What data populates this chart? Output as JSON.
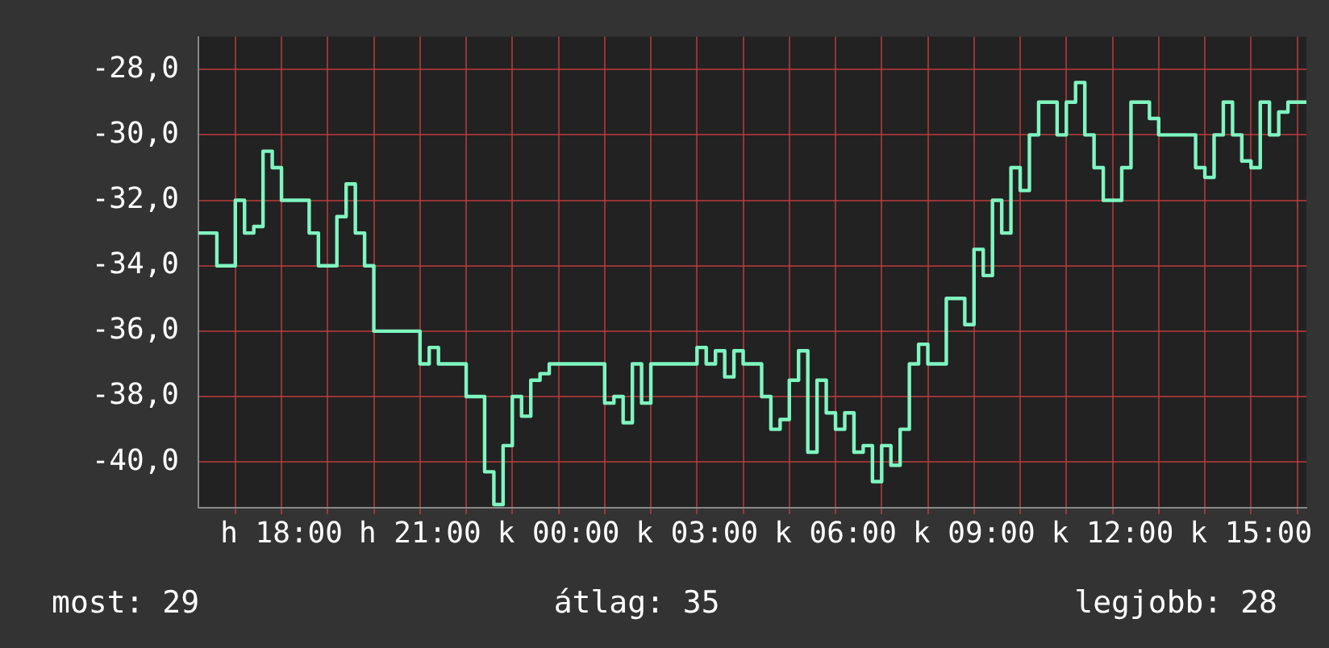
{
  "chart_data": {
    "type": "step",
    "grid": true,
    "legend": false,
    "marker": "none",
    "line_style": "solid",
    "categories": [
      null,
      null,
      null,
      null,
      null,
      null,
      null,
      null,
      null,
      "h 18:00",
      null,
      null,
      null,
      null,
      null,
      null,
      null,
      null,
      null,
      null,
      null,
      null,
      null,
      null,
      "h 21:00",
      null,
      null,
      null,
      null,
      null,
      null,
      null,
      null,
      null,
      null,
      null,
      null,
      null,
      null,
      "k 00:00",
      null,
      null,
      null,
      null,
      null,
      null,
      null,
      null,
      null,
      null,
      null,
      null,
      null,
      null,
      "k 03:00",
      null,
      null,
      null,
      null,
      null,
      null,
      null,
      null,
      null,
      null,
      null,
      null,
      null,
      null,
      "k 06:00",
      null,
      null,
      null,
      null,
      null,
      null,
      null,
      null,
      null,
      null,
      null,
      null,
      null,
      null,
      "k 09:00",
      null,
      null,
      null,
      null,
      null,
      null,
      null,
      null,
      null,
      null,
      null,
      null,
      null,
      null,
      "k 12:00",
      null,
      null,
      null,
      null,
      null,
      null,
      null,
      null,
      null,
      null,
      null,
      null,
      null,
      null,
      "k 15:00",
      null,
      null,
      null,
      null,
      null,
      null
    ],
    "ylim": [
      -41.4,
      -27.0
    ],
    "yticks": [
      {
        "value": -40,
        "label": "-40,0"
      },
      {
        "value": -38,
        "label": "-38,0"
      },
      {
        "value": -36,
        "label": "-36,0"
      },
      {
        "value": -34,
        "label": "-34,0"
      },
      {
        "value": -32,
        "label": "-32,0"
      },
      {
        "value": -30,
        "label": "-30,0"
      },
      {
        "value": -28,
        "label": "-28,0"
      }
    ],
    "annotations": [
      "most: 29",
      "átlag: 35",
      "legjobb: 28"
    ],
    "series": [
      {
        "color": "#7ff5c0",
        "values": [
          -33,
          -33,
          -33,
          -34,
          -34,
          -32,
          -33,
          -32.8,
          -30.5,
          -31,
          -32,
          -32,
          -32,
          -33,
          -34,
          -34,
          -32.5,
          -31.5,
          -33,
          -34,
          -36,
          -36,
          -36,
          -36,
          -36,
          -37,
          -36.5,
          -37,
          -37,
          -37,
          -38,
          -38,
          -40.3,
          -41.3,
          -39.5,
          -38,
          -38.6,
          -37.5,
          -37.3,
          -37,
          -37,
          -37,
          -37,
          -37,
          -37,
          -38.2,
          -38,
          -38.8,
          -37,
          -38.2,
          -37,
          -37,
          -37,
          -37,
          -37,
          -36.5,
          -37,
          -36.6,
          -37.4,
          -36.6,
          -37,
          -37,
          -38,
          -39,
          -38.7,
          -37.5,
          -36.6,
          -39.7,
          -37.5,
          -38.5,
          -39,
          -38.5,
          -39.7,
          -39.5,
          -40.6,
          -39.5,
          -40.1,
          -39,
          -37,
          -36.4,
          -37,
          -37,
          -35,
          -35,
          -35.8,
          -33.5,
          -34.3,
          -32,
          -33,
          -31,
          -31.7,
          -30,
          -29,
          -29,
          -30,
          -29,
          -28.4,
          -30,
          -31,
          -32,
          -32,
          -31,
          -29,
          -29,
          -29.5,
          -30,
          -30,
          -30,
          -30,
          -31,
          -31.3,
          -30,
          -29,
          -30,
          -30.8,
          -31,
          -29,
          -30,
          -29.3,
          -29,
          -29
        ]
      }
    ]
  }
}
